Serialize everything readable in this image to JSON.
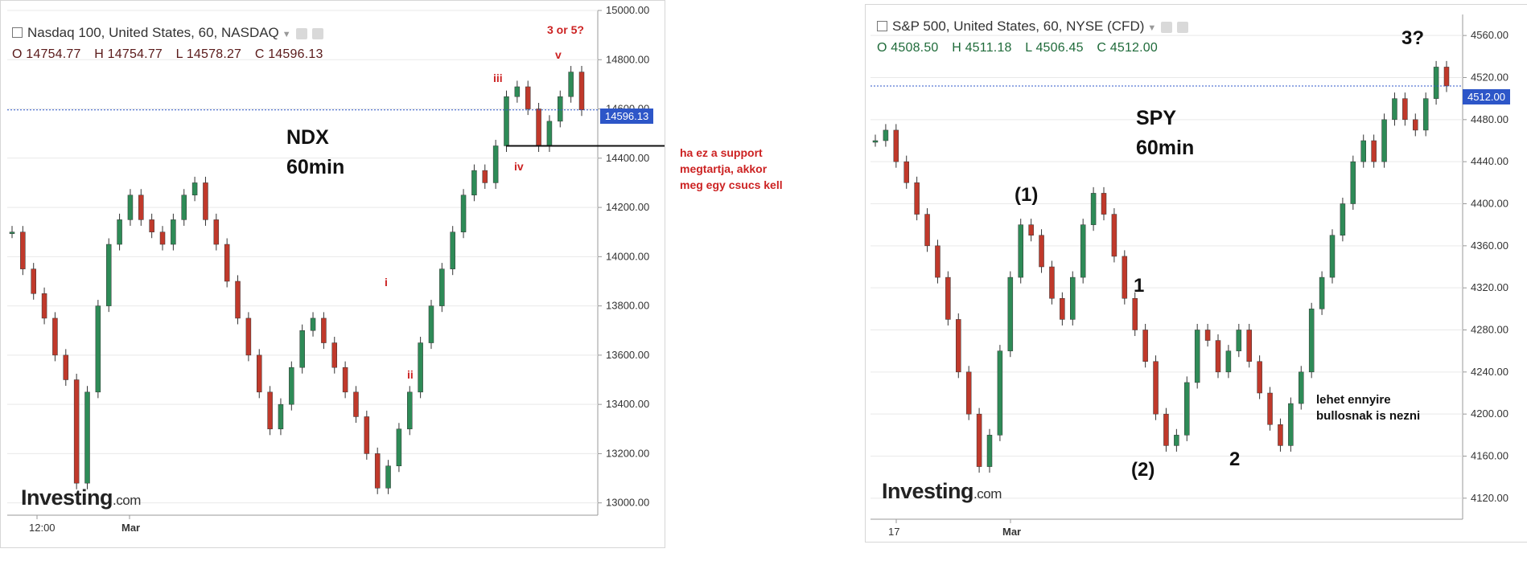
{
  "ndx": {
    "title": "Nasdaq 100, United States, 60, NASDAQ",
    "ohlc": {
      "o": "O 14754.77",
      "h": "H 14754.77",
      "l": "L 14578.27",
      "c": "C 14596.13"
    },
    "label_line1": "NDX",
    "label_line2": "60min",
    "waves": {
      "i": "i",
      "ii": "ii",
      "iii": "iii",
      "iv": "iv",
      "v": "v",
      "top": "3 or 5?"
    },
    "note_lines": [
      "ha ez a support",
      "megtartja, akkor",
      "meg egy csucs kell"
    ],
    "price_tag": "14596.13",
    "x_labels": [
      "12:00",
      "Mar"
    ],
    "logo_main": "Investing",
    "logo_tld": ".com"
  },
  "spy": {
    "title": "S&P 500, United States, 60, NYSE (CFD)",
    "ohlc": {
      "o": "O 4508.50",
      "h": "H 4511.18",
      "l": "L 4506.45",
      "c": "C 4512.00"
    },
    "label_line1": "SPY",
    "label_line2": "60min",
    "waves": {
      "w1": "(1)",
      "w2": "(2)",
      "one": "1",
      "two": "2",
      "three": "3?"
    },
    "note_lines": [
      "lehet ennyire",
      "bullosnak is nezni"
    ],
    "price_tag": "4512.00",
    "x_labels": [
      "17",
      "Mar"
    ],
    "logo_main": "Investing",
    "logo_tld": ".com"
  },
  "colors": {
    "up": "#2e8b57",
    "down": "#c0392b",
    "grid": "#e9e9e9",
    "accent_red": "#cc2222",
    "price_line": "#2d56c8"
  },
  "chart_data": [
    {
      "type": "candlestick",
      "title": "Nasdaq 100, United States, 60, NASDAQ",
      "xlabel": "",
      "ylabel": "",
      "x_ticks": [
        "12:00",
        "Mar"
      ],
      "y_ticks": [
        13000,
        13200,
        13400,
        13600,
        13800,
        14000,
        14200,
        14400,
        14600,
        14800,
        15000
      ],
      "ylim": [
        12950,
        15000
      ],
      "last_price": 14596.13,
      "support_level": 14450,
      "series": [
        {
          "values": [
            14100,
            13950,
            13850,
            13750,
            13600,
            13500,
            13080,
            13450,
            13800,
            14050,
            14150,
            14250,
            14150,
            14100,
            14050,
            14150,
            14250,
            14300,
            14150,
            14050,
            13900,
            13750,
            13600,
            13450,
            13300,
            13400,
            13550,
            13700,
            13750,
            13650,
            13550,
            13450,
            13350,
            13200,
            13060,
            13150,
            13300,
            13450,
            13650,
            13800,
            13950,
            14100,
            14250,
            14350,
            14300,
            14450,
            14650,
            14690,
            14600,
            14450,
            14550,
            14650,
            14750,
            14596
          ]
        }
      ],
      "grid": true
    },
    {
      "type": "candlestick",
      "title": "S&P 500, United States, 60, NYSE (CFD)",
      "xlabel": "",
      "ylabel": "",
      "x_ticks": [
        "17",
        "Mar"
      ],
      "y_ticks": [
        4120,
        4160,
        4200,
        4240,
        4280,
        4320,
        4360,
        4400,
        4440,
        4480,
        4520,
        4560
      ],
      "ylim": [
        4100,
        4580
      ],
      "last_price": 4512.0,
      "series": [
        {
          "values": [
            4460,
            4470,
            4440,
            4420,
            4390,
            4360,
            4330,
            4290,
            4240,
            4200,
            4150,
            4180,
            4260,
            4330,
            4380,
            4370,
            4340,
            4310,
            4290,
            4330,
            4380,
            4410,
            4390,
            4350,
            4310,
            4280,
            4250,
            4200,
            4170,
            4180,
            4230,
            4280,
            4270,
            4240,
            4260,
            4280,
            4250,
            4220,
            4190,
            4170,
            4210,
            4240,
            4300,
            4330,
            4370,
            4400,
            4440,
            4460,
            4440,
            4480,
            4500,
            4480,
            4470,
            4500,
            4530,
            4512
          ]
        }
      ],
      "grid": true
    }
  ]
}
